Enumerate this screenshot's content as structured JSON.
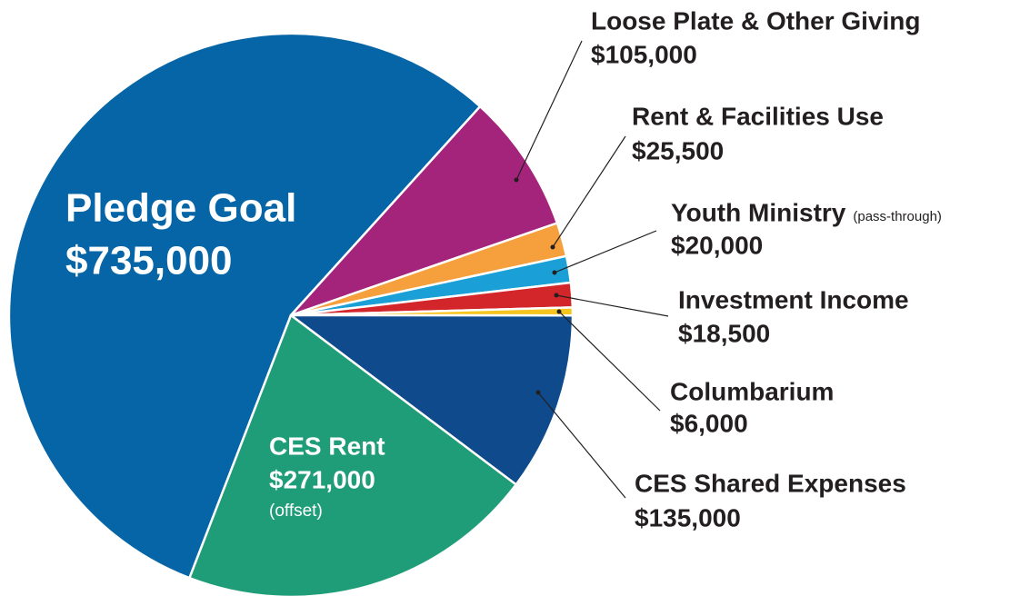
{
  "chart_data": {
    "type": "pie",
    "categories": [
      "Pledge Goal",
      "Loose Plate & Other Giving",
      "Rent & Facilities Use",
      "Youth Ministry",
      "Investment Income",
      "Columbarium",
      "CES Shared Expenses",
      "CES Rent"
    ],
    "values": [
      735000,
      105000,
      25500,
      20000,
      18500,
      6000,
      135000,
      271000
    ],
    "value_labels": [
      "$735,000",
      "$105,000",
      "$25,500",
      "$20,000",
      "$18,500",
      "$6,000",
      "$135,000",
      "$271,000"
    ],
    "notes": [
      null,
      null,
      null,
      "(pass-through)",
      null,
      null,
      null,
      "(offset)"
    ],
    "colors": [
      "#0565a6",
      "#a4237b",
      "#f5a03c",
      "#1aa0d6",
      "#d3262b",
      "#f7c520",
      "#0e4a8c",
      "#1f9c78"
    ]
  }
}
